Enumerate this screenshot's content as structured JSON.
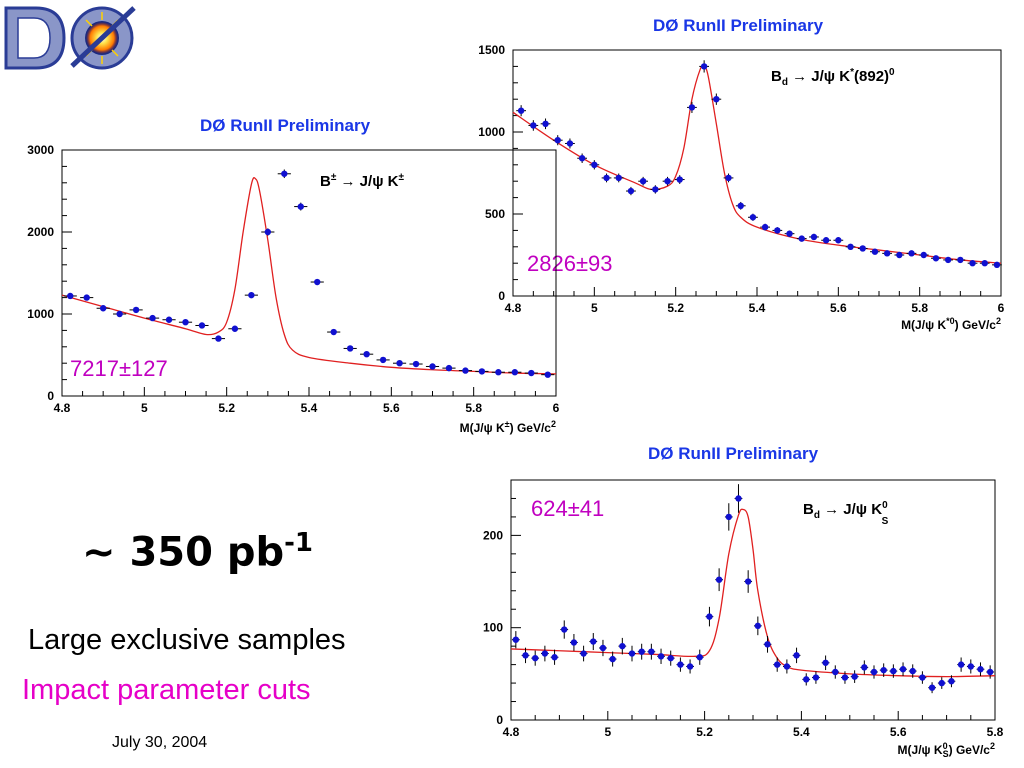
{
  "slide": {
    "logo_text": "DØ",
    "luminosity": "~ 350 pb",
    "luminosity_exp": "-1",
    "line1": "Large exclusive samples",
    "line2": "Impact parameter cuts",
    "date": "July 30, 2004"
  },
  "colors": {
    "points": "#1010d0",
    "fit": "#e02020",
    "header": "#1a37e6",
    "yield": "#c000c0",
    "cuts": "#e600c8"
  },
  "chart_data": [
    {
      "type": "scatter",
      "header": "DØ RunII  Preliminary",
      "decay": "B± → J/ψ K±",
      "yield_label": "7217±127",
      "xlabel": "M(J/ψ K±) GeV/c²",
      "ylabel": "",
      "xlim": [
        4.8,
        6.0
      ],
      "ylim": [
        0,
        3000
      ],
      "xticks": [
        "4.8",
        "5",
        "5.2",
        "5.4",
        "5.6",
        "5.8",
        "6"
      ],
      "yticks": [
        "0",
        "1000",
        "2000",
        "3000"
      ],
      "series": [
        {
          "kind": "data",
          "x": [
            4.82,
            4.86,
            4.9,
            4.94,
            4.98,
            5.02,
            5.06,
            5.1,
            5.14,
            5.18,
            5.22,
            5.26,
            5.3,
            5.34,
            5.38,
            5.42,
            5.46,
            5.5,
            5.54,
            5.58,
            5.62,
            5.66,
            5.7,
            5.74,
            5.78,
            5.82,
            5.86,
            5.9,
            5.94,
            5.98
          ],
          "y": [
            1220,
            1200,
            1070,
            1000,
            1050,
            950,
            930,
            900,
            860,
            700,
            820,
            1230,
            2000,
            2710,
            2310,
            1390,
            780,
            580,
            510,
            440,
            400,
            390,
            360,
            340,
            310,
            300,
            290,
            290,
            280,
            260
          ]
        },
        {
          "kind": "fit",
          "x": [
            4.8,
            4.9,
            5.0,
            5.1,
            5.15,
            5.18,
            5.2,
            5.22,
            5.24,
            5.26,
            5.27,
            5.28,
            5.3,
            5.32,
            5.34,
            5.36,
            5.4,
            5.5,
            5.6,
            5.7,
            5.8,
            5.9,
            6.0
          ],
          "y": [
            1230,
            1090,
            950,
            820,
            750,
            780,
            900,
            1300,
            2000,
            2580,
            2650,
            2500,
            1900,
            1200,
            750,
            560,
            470,
            400,
            350,
            320,
            300,
            280,
            270
          ]
        }
      ]
    },
    {
      "type": "scatter",
      "header": "DØ RunII  Preliminary",
      "decay": "Bd → J/ψ K*(892)0",
      "yield_label": "2826±93",
      "xlabel": "M(J/ψ K*0) GeV/c²",
      "ylabel": "",
      "xlim": [
        4.8,
        6.0
      ],
      "ylim": [
        0,
        1500
      ],
      "xticks": [
        "4.8",
        "5",
        "5.2",
        "5.4",
        "5.6",
        "5.8",
        "6"
      ],
      "yticks": [
        "0",
        "500",
        "1000",
        "1500"
      ],
      "series": [
        {
          "kind": "data",
          "x": [
            4.82,
            4.85,
            4.88,
            4.91,
            4.94,
            4.97,
            5.0,
            5.03,
            5.06,
            5.09,
            5.12,
            5.15,
            5.18,
            5.21,
            5.24,
            5.27,
            5.3,
            5.33,
            5.36,
            5.39,
            5.42,
            5.45,
            5.48,
            5.51,
            5.54,
            5.57,
            5.6,
            5.63,
            5.66,
            5.69,
            5.72,
            5.75,
            5.78,
            5.81,
            5.84,
            5.87,
            5.9,
            5.93,
            5.96,
            5.99
          ],
          "y": [
            1130,
            1040,
            1050,
            950,
            930,
            840,
            800,
            720,
            720,
            640,
            700,
            650,
            700,
            710,
            1150,
            1400,
            1200,
            720,
            550,
            480,
            420,
            400,
            380,
            350,
            360,
            340,
            340,
            300,
            290,
            270,
            260,
            250,
            260,
            250,
            230,
            220,
            220,
            200,
            200,
            190
          ]
        },
        {
          "kind": "fit",
          "x": [
            4.8,
            4.9,
            5.0,
            5.1,
            5.14,
            5.18,
            5.2,
            5.22,
            5.24,
            5.26,
            5.27,
            5.28,
            5.3,
            5.32,
            5.34,
            5.36,
            5.4,
            5.5,
            5.6,
            5.7,
            5.8,
            5.9,
            6.0
          ],
          "y": [
            1120,
            950,
            800,
            690,
            650,
            670,
            730,
            900,
            1200,
            1380,
            1400,
            1340,
            1050,
            750,
            560,
            480,
            420,
            350,
            310,
            280,
            250,
            220,
            200
          ]
        }
      ]
    },
    {
      "type": "scatter",
      "header": "DØ RunII  Preliminary",
      "decay": "Bd → J/ψ KS0",
      "yield_label": "624±41",
      "xlabel": "M(J/ψ KS0) GeV/c²",
      "ylabel": "",
      "xlim": [
        4.8,
        5.8
      ],
      "ylim": [
        0,
        260
      ],
      "xticks": [
        "4.8",
        "5",
        "5.2",
        "5.4",
        "5.6",
        "5.8"
      ],
      "yticks": [
        "0",
        "100",
        "200"
      ],
      "series": [
        {
          "kind": "data",
          "x": [
            4.81,
            4.83,
            4.85,
            4.87,
            4.89,
            4.91,
            4.93,
            4.95,
            4.97,
            4.99,
            5.01,
            5.03,
            5.05,
            5.07,
            5.09,
            5.11,
            5.13,
            5.15,
            5.17,
            5.19,
            5.21,
            5.23,
            5.25,
            5.27,
            5.29,
            5.31,
            5.33,
            5.35,
            5.37,
            5.39,
            5.41,
            5.43,
            5.45,
            5.47,
            5.49,
            5.51,
            5.53,
            5.55,
            5.57,
            5.59,
            5.61,
            5.63,
            5.65,
            5.67,
            5.69,
            5.71,
            5.73,
            5.75,
            5.77,
            5.79
          ],
          "y": [
            87,
            70,
            67,
            72,
            68,
            98,
            84,
            72,
            85,
            78,
            66,
            80,
            72,
            74,
            74,
            69,
            67,
            60,
            58,
            68,
            112,
            152,
            220,
            240,
            150,
            102,
            82,
            60,
            58,
            70,
            44,
            46,
            62,
            52,
            46,
            47,
            57,
            52,
            54,
            53,
            55,
            53,
            46,
            35,
            40,
            42,
            60,
            58,
            55,
            52
          ]
        },
        {
          "kind": "fit",
          "x": [
            4.8,
            4.9,
            5.0,
            5.1,
            5.18,
            5.21,
            5.23,
            5.25,
            5.27,
            5.28,
            5.29,
            5.3,
            5.31,
            5.33,
            5.35,
            5.37,
            5.4,
            5.5,
            5.6,
            5.7,
            5.8
          ],
          "y": [
            77,
            75,
            73,
            71,
            69,
            75,
            110,
            180,
            222,
            228,
            220,
            185,
            140,
            90,
            67,
            58,
            54,
            50,
            48,
            47,
            48
          ]
        }
      ]
    }
  ]
}
